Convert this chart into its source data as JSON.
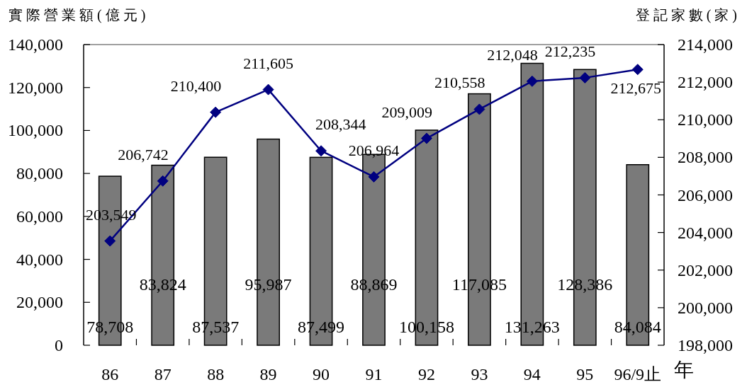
{
  "chart_data": {
    "type": "bar",
    "categories": [
      "86",
      "87",
      "88",
      "89",
      "90",
      "91",
      "92",
      "93",
      "94",
      "95",
      "96/9止"
    ],
    "series": [
      {
        "color": "#7a7a7a",
        "values": [
          78708,
          83824,
          87537,
          95987,
          87499,
          88869,
          100158,
          117085,
          131263,
          128386,
          84084
        ],
        "value_labels": [
          "78,708",
          "83,824",
          "87,537",
          "95,987",
          "87,499",
          "88,869",
          "100,158",
          "117,085",
          "131,263",
          "128,386",
          "84,084"
        ]
      },
      {
        "type": "line",
        "axis": "y2",
        "color": "#000080",
        "marker": "diamond",
        "values": [
          203549,
          206742,
          210400,
          211605,
          208344,
          206964,
          209009,
          210558,
          212048,
          212235,
          212675
        ],
        "value_labels": [
          "203,549",
          "206,742",
          "210,400",
          "211,605",
          "208,344",
          "206,964",
          "209,009",
          "210,558",
          "212,048",
          "212,235",
          "212,675"
        ]
      }
    ],
    "ylabel": "實際營業額(億元)",
    "y2label": "登記家數(家)",
    "xlabel": "年",
    "ylim": [
      0,
      140000
    ],
    "yticks": [
      {
        "value": 0,
        "label": "0"
      },
      {
        "value": 20000,
        "label": "20,000"
      },
      {
        "value": 40000,
        "label": "40,000"
      },
      {
        "value": 60000,
        "label": "60,000"
      },
      {
        "value": 80000,
        "label": "80,000"
      },
      {
        "value": 100000,
        "label": "100,000"
      },
      {
        "value": 120000,
        "label": "120,000"
      },
      {
        "value": 140000,
        "label": "140,000"
      }
    ],
    "y2lim": [
      198000,
      214000
    ],
    "y2ticks": [
      {
        "value": 198000,
        "label": "198,000"
      },
      {
        "value": 200000,
        "label": "200,000"
      },
      {
        "value": 202000,
        "label": "202,000"
      },
      {
        "value": 204000,
        "label": "204,000"
      },
      {
        "value": 206000,
        "label": "206,000"
      },
      {
        "value": 208000,
        "label": "208,000"
      },
      {
        "value": 210000,
        "label": "210,000"
      },
      {
        "value": 212000,
        "label": "212,000"
      },
      {
        "value": 214000,
        "label": "214,000"
      }
    ]
  }
}
